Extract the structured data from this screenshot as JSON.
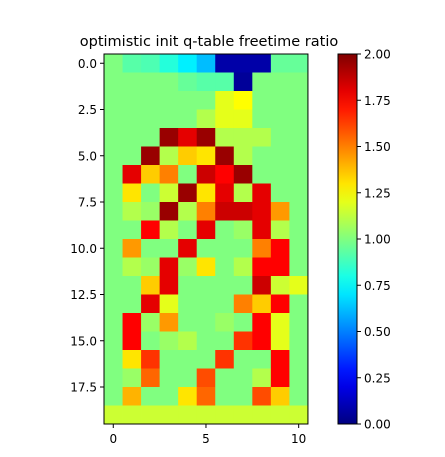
{
  "chart_data": {
    "type": "heatmap",
    "title": "optimistic init q-table freetime ratio",
    "colormap": "jet",
    "vmin": 0.0,
    "vmax": 2.0,
    "colorbar_ticks": [
      "0.00",
      "0.25",
      "0.50",
      "0.75",
      "1.00",
      "1.25",
      "1.50",
      "1.75",
      "2.00"
    ],
    "colorbar_tick_values": [
      0.0,
      0.25,
      0.5,
      0.75,
      1.0,
      1.25,
      1.5,
      1.75,
      2.0
    ],
    "x_ticks": [
      "0",
      "5",
      "10"
    ],
    "x_tick_values": [
      0,
      5,
      10
    ],
    "y_ticks": [
      "0.0",
      "2.5",
      "5.0",
      "7.5",
      "10.0",
      "12.5",
      "15.0",
      "17.5"
    ],
    "y_tick_values": [
      0,
      2.5,
      5,
      7.5,
      10,
      12.5,
      15,
      17.5
    ],
    "n_cols": 11,
    "n_rows": 20,
    "values": [
      [
        1.0,
        0.92,
        0.9,
        0.82,
        0.72,
        0.62,
        0.08,
        0.08,
        0.08,
        0.95,
        0.95
      ],
      [
        1.0,
        1.0,
        1.0,
        1.0,
        0.95,
        0.92,
        0.92,
        0.05,
        1.0,
        1.0,
        1.0
      ],
      [
        1.0,
        1.0,
        1.0,
        1.0,
        1.0,
        1.0,
        1.2,
        1.25,
        1.0,
        1.0,
        1.0
      ],
      [
        1.0,
        1.0,
        1.0,
        1.0,
        1.0,
        1.1,
        1.2,
        1.2,
        1.0,
        1.0,
        1.0
      ],
      [
        1.0,
        1.0,
        1.0,
        1.95,
        1.8,
        1.95,
        1.1,
        1.1,
        1.1,
        1.0,
        1.0
      ],
      [
        1.0,
        1.0,
        1.95,
        1.1,
        1.35,
        1.3,
        1.95,
        1.1,
        1.0,
        1.0,
        1.0
      ],
      [
        1.0,
        1.8,
        1.35,
        1.5,
        1.0,
        1.85,
        1.75,
        1.95,
        1.0,
        1.0,
        1.0
      ],
      [
        1.0,
        1.3,
        1.0,
        1.15,
        1.95,
        1.3,
        1.8,
        1.1,
        1.8,
        1.0,
        1.0
      ],
      [
        1.0,
        1.1,
        1.05,
        1.95,
        1.1,
        1.5,
        1.85,
        1.85,
        1.8,
        1.45,
        1.0
      ],
      [
        1.0,
        1.0,
        1.75,
        1.1,
        1.0,
        1.8,
        1.0,
        1.05,
        1.8,
        1.1,
        1.0
      ],
      [
        1.0,
        1.45,
        1.0,
        1.0,
        1.8,
        1.0,
        1.0,
        1.0,
        1.5,
        1.75,
        1.0
      ],
      [
        1.0,
        1.1,
        1.05,
        1.8,
        1.05,
        1.3,
        1.0,
        1.1,
        1.75,
        1.75,
        1.0
      ],
      [
        1.0,
        1.0,
        1.35,
        1.8,
        1.0,
        1.0,
        1.0,
        1.0,
        1.85,
        1.15,
        1.2
      ],
      [
        1.0,
        1.0,
        1.8,
        1.2,
        1.0,
        1.0,
        1.0,
        1.5,
        1.35,
        1.75,
        1.0
      ],
      [
        1.0,
        1.75,
        1.05,
        1.45,
        1.0,
        1.0,
        1.05,
        1.0,
        1.75,
        1.2,
        1.0
      ],
      [
        1.0,
        1.75,
        1.0,
        1.05,
        1.1,
        1.0,
        1.0,
        1.65,
        1.75,
        1.2,
        1.0
      ],
      [
        1.0,
        1.3,
        1.65,
        1.0,
        1.0,
        1.0,
        1.65,
        1.0,
        1.0,
        1.75,
        1.0
      ],
      [
        1.0,
        1.05,
        1.55,
        1.0,
        1.0,
        1.6,
        1.0,
        1.0,
        1.1,
        1.75,
        1.0
      ],
      [
        1.0,
        1.4,
        1.0,
        1.0,
        1.3,
        1.55,
        1.0,
        1.0,
        1.6,
        1.35,
        1.0
      ],
      [
        1.15,
        1.15,
        1.15,
        1.15,
        1.15,
        1.15,
        1.15,
        1.15,
        1.15,
        1.15,
        1.15
      ]
    ]
  }
}
